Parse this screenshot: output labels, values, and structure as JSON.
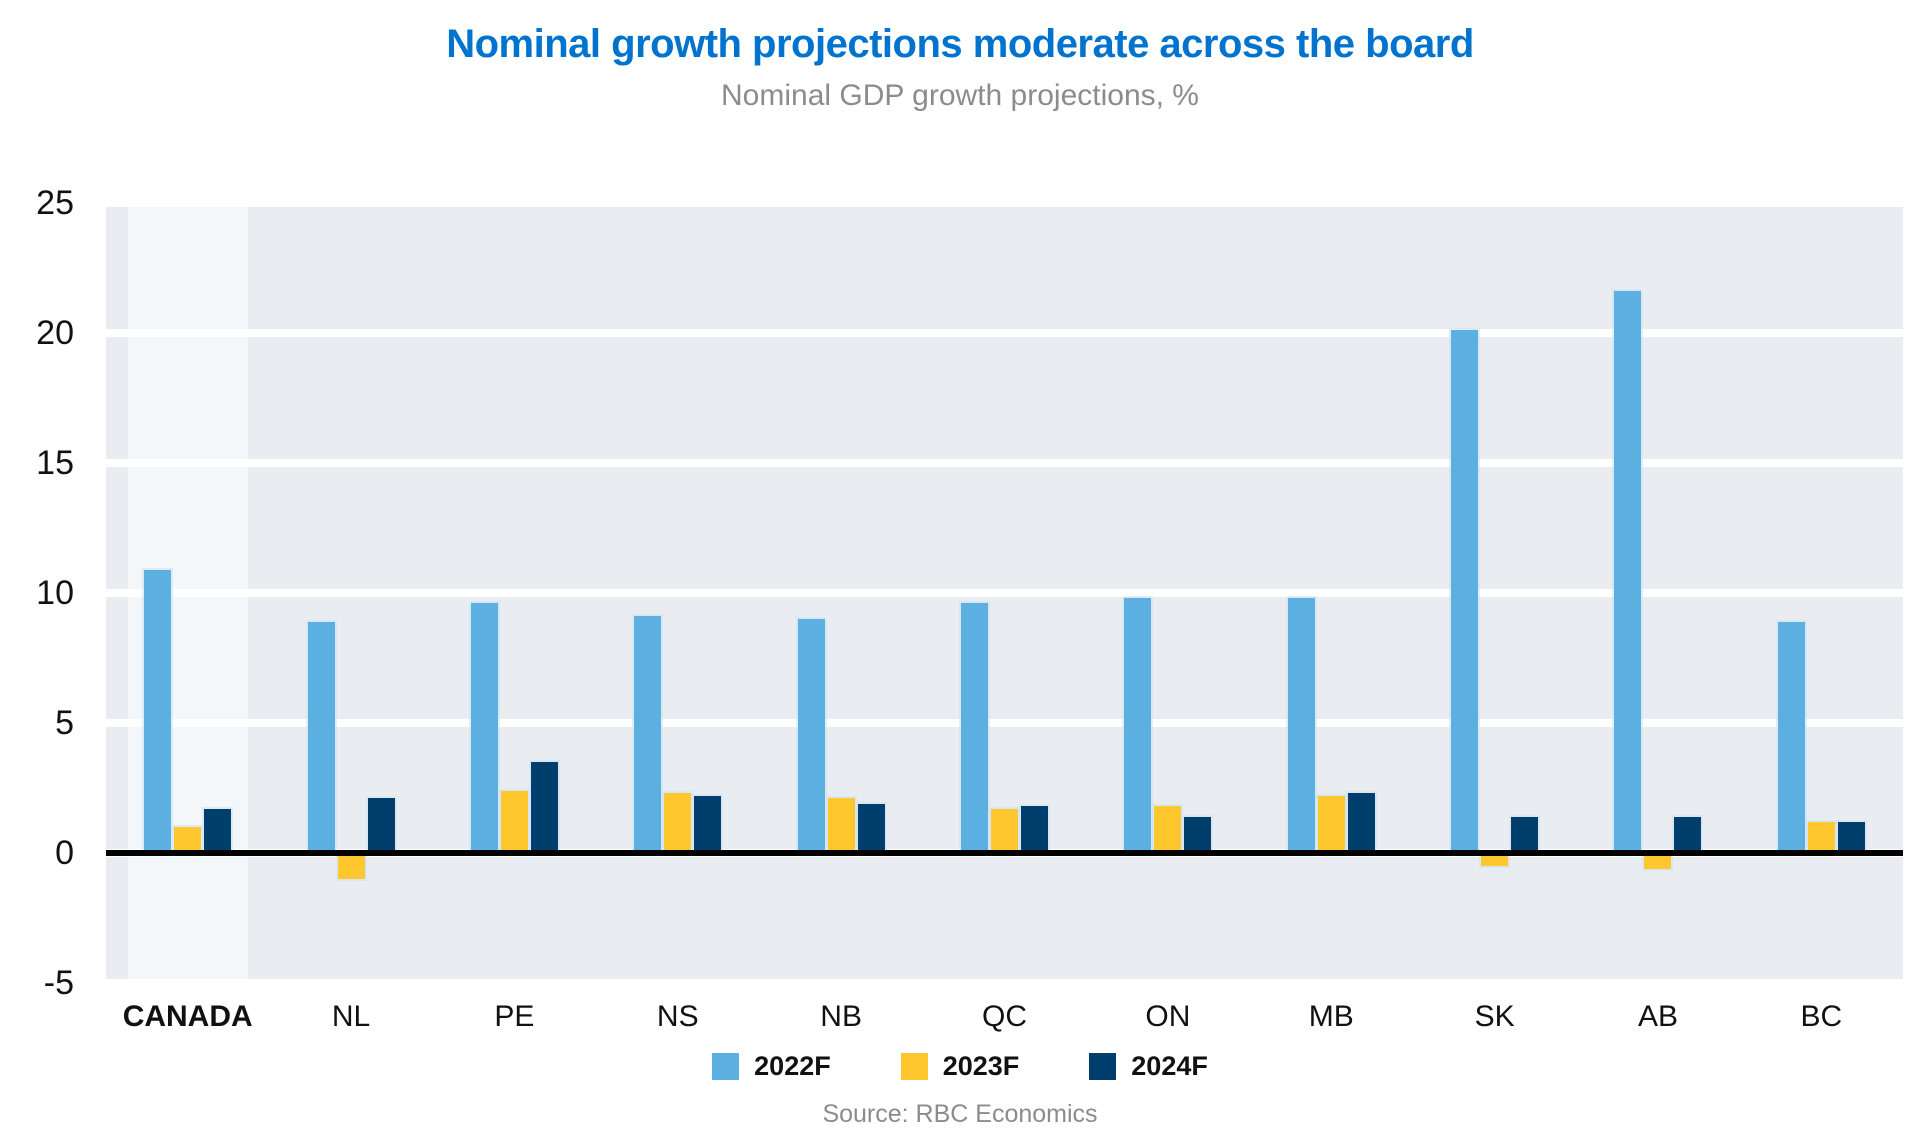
{
  "header": {
    "title": "Nominal growth projections moderate across the board",
    "subtitle": "Nominal GDP growth projections, %"
  },
  "source": "Source: RBC Economics",
  "colors": {
    "title": "#0073cf",
    "subtitle": "#8c8c8c",
    "source": "#8c8c8c",
    "plot_background": "#e9edf2",
    "highlight_band": "#f4f7fa",
    "gridline": "#ffffff",
    "zero_axis": "#000000",
    "series_2022f": "#5cb0e1",
    "series_2023f": "#fec72e",
    "series_2024f": "#003e6d"
  },
  "chart_data": {
    "type": "bar",
    "title": "Nominal growth projections moderate across the board",
    "subtitle": "Nominal GDP growth projections, %",
    "categories": [
      "CANADA",
      "NL",
      "PE",
      "NS",
      "NB",
      "QC",
      "ON",
      "MB",
      "SK",
      "AB",
      "BC"
    ],
    "emphasized_category": "CANADA",
    "series": [
      {
        "name": "2022F",
        "color": "#5cb0e1",
        "values": [
          10.9,
          8.9,
          9.6,
          9.1,
          9.0,
          9.6,
          9.8,
          9.8,
          20.1,
          21.6,
          8.9
        ]
      },
      {
        "name": "2023F",
        "color": "#fec72e",
        "values": [
          1.0,
          -1.0,
          2.4,
          2.3,
          2.1,
          1.7,
          1.8,
          2.2,
          -0.5,
          -0.6,
          1.2
        ]
      },
      {
        "name": "2024F",
        "color": "#003e6d",
        "values": [
          1.7,
          2.1,
          3.5,
          2.2,
          1.9,
          1.8,
          1.4,
          2.3,
          1.4,
          1.4,
          1.2
        ]
      }
    ],
    "ylabel": "",
    "xlabel": "",
    "ylim": [
      -5,
      25
    ],
    "yticks": [
      25,
      20,
      15,
      10,
      5,
      0,
      -5
    ],
    "grid": "horizontal",
    "legend_position": "bottom",
    "source": "Source: RBC Economics"
  }
}
